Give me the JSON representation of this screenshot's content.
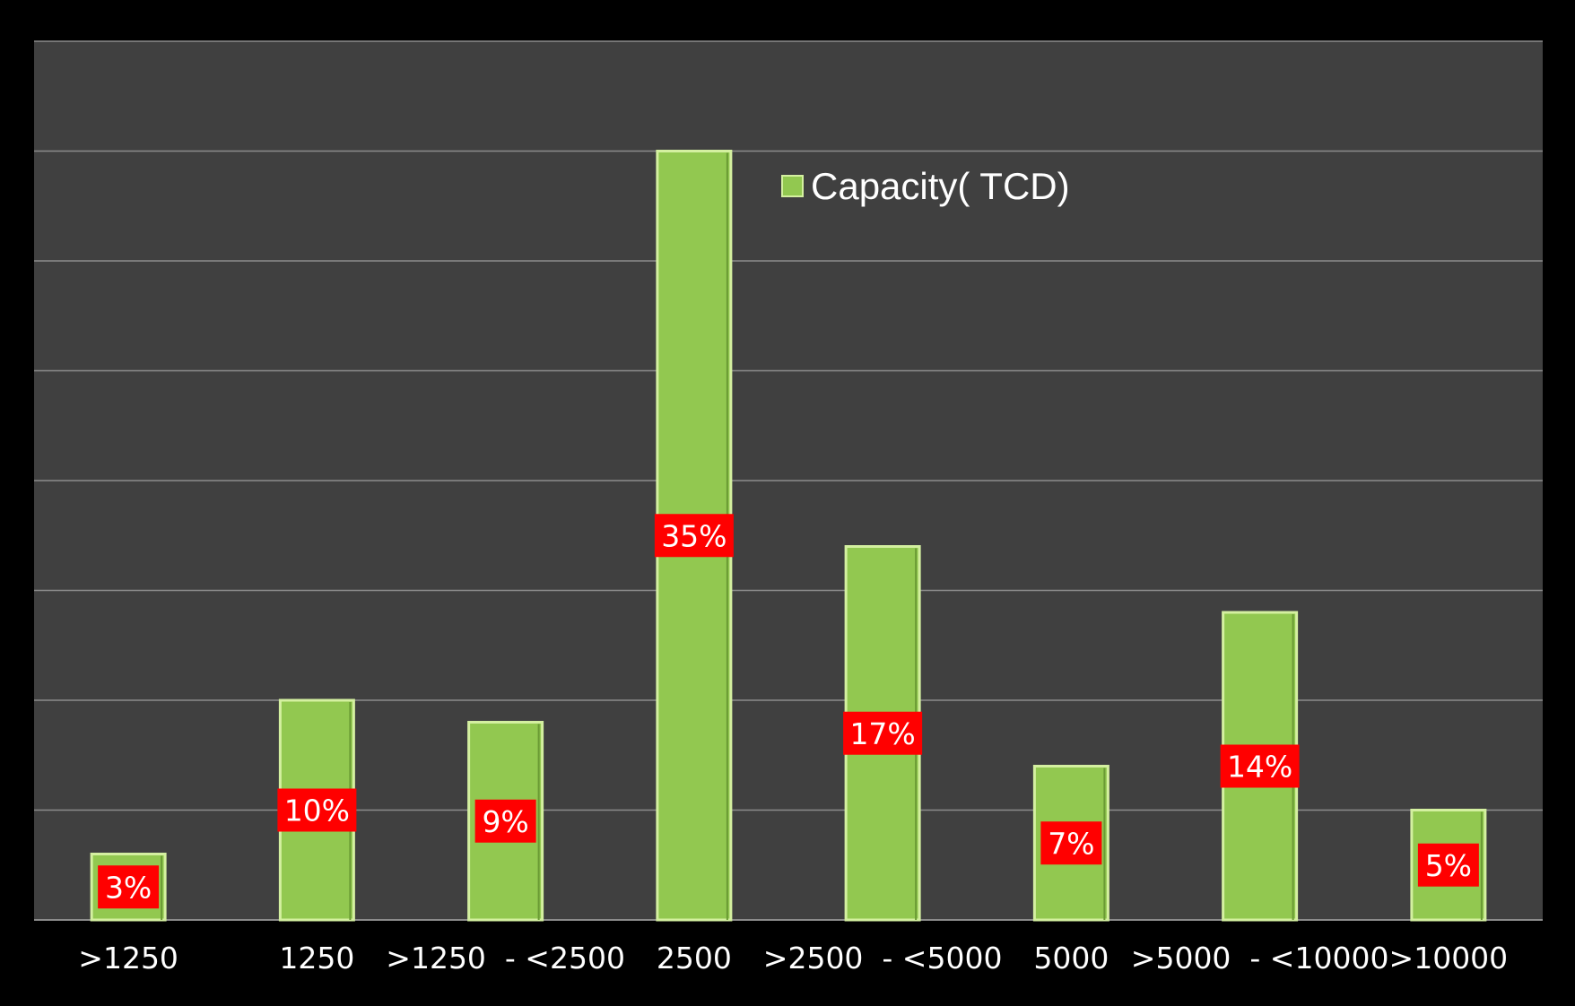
{
  "colors": {
    "page_background": "#000000",
    "plot_background": "#404040",
    "gridline": "#8c8c8c",
    "bar_fill": "#92c850",
    "bar_highlight": "#d4f0a0",
    "bar_shadow": "#6a9a34",
    "label_background": "#ff0000",
    "text": "#ffffff"
  },
  "chart_data": {
    "type": "bar",
    "categories": [
      ">1250",
      "1250",
      ">1250  - <2500",
      "2500",
      ">2500  - <5000",
      "5000",
      ">5000  - <10000",
      ">10000"
    ],
    "series": [
      {
        "name": "Capacity( TCD)",
        "values": [
          3,
          10,
          9,
          35,
          17,
          7,
          14,
          5
        ],
        "data_labels": [
          "3%",
          "10%",
          "9%",
          "35%",
          "17%",
          "7%",
          "14%",
          "5%"
        ]
      }
    ],
    "title": "",
    "xlabel": "",
    "ylabel": "",
    "ylim": [
      0,
      40
    ],
    "gridlines": true,
    "legend_position": "top-center",
    "y_tick_labels_shown": false
  }
}
